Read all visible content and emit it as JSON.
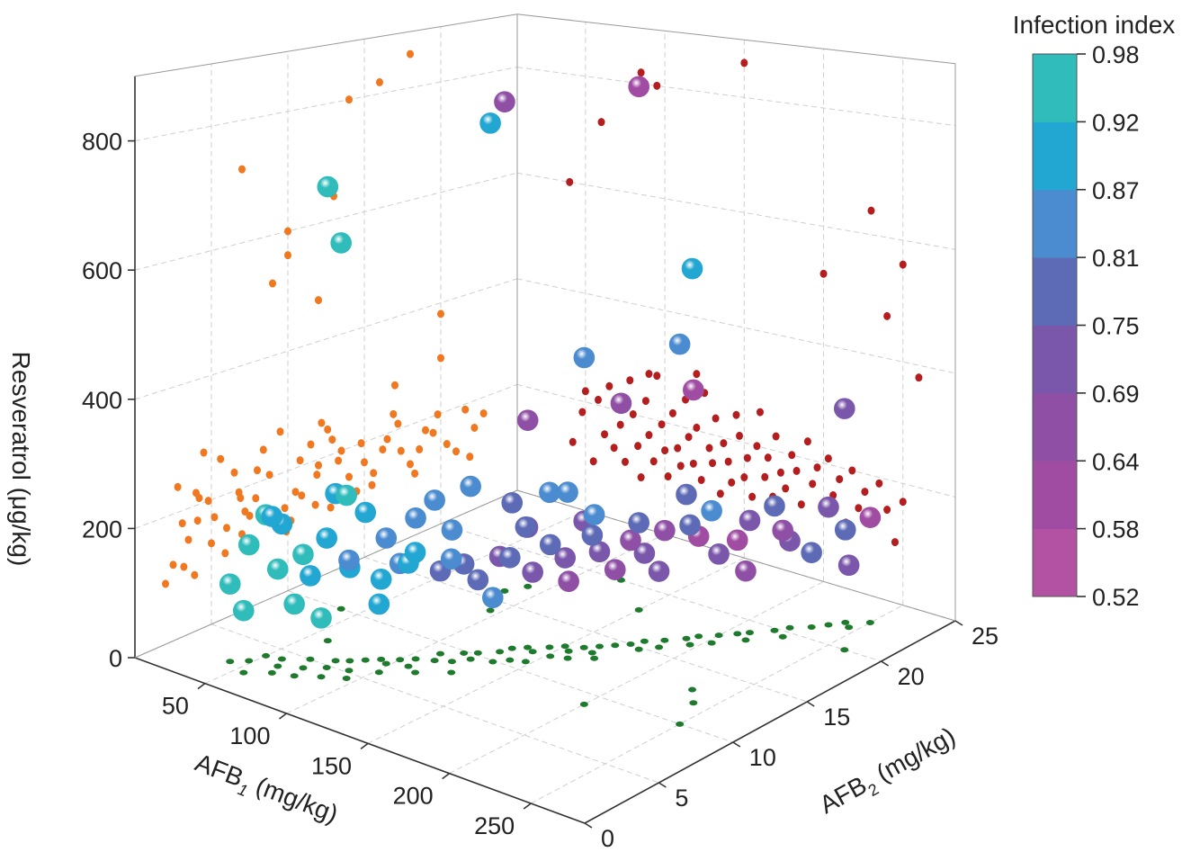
{
  "chart_data": {
    "type": "scatter3d",
    "title": "",
    "x_axis": {
      "label": "AFB",
      "sub": "1",
      "unit": " (mg/kg)",
      "range": [
        7,
        283
      ],
      "ticks": [
        "50",
        "100",
        "150",
        "200",
        "250"
      ],
      "tick_values": [
        50,
        100,
        150,
        200,
        250
      ]
    },
    "y_axis": {
      "label": "AFB",
      "sub": "2",
      "unit": " (mg/kg)",
      "range": [
        0,
        25
      ],
      "ticks": [
        "0",
        "5",
        "10",
        "15",
        "20",
        "25"
      ],
      "tick_values": [
        0,
        5,
        10,
        15,
        20,
        25
      ]
    },
    "z_axis": {
      "label": "Resveratrol (μg/kg)",
      "range": [
        0,
        900
      ],
      "ticks": [
        "0",
        "200",
        "400",
        "600",
        "800"
      ],
      "tick_values": [
        0,
        200,
        400,
        600,
        800
      ]
    },
    "colorbar": {
      "title": "Infection index",
      "ticks": [
        "0.98",
        "0.92",
        "0.87",
        "0.81",
        "0.75",
        "0.69",
        "0.64",
        "0.58",
        "0.52"
      ],
      "bounds": [
        0.52,
        0.58,
        0.64,
        0.69,
        0.75,
        0.81,
        0.87,
        0.92,
        0.98
      ],
      "colors": [
        "#b352a2",
        "#a14ca3",
        "#8f4fa5",
        "#7a57aa",
        "#5d6ab6",
        "#4b8bd0",
        "#22a6d2",
        "#2fbcbb"
      ]
    },
    "projection_colors": {
      "afb2_resveratrol_wall": "#f07820",
      "afb1_resveratrol_wall": "#b51e1e",
      "floor": "#1e7a2c"
    },
    "grid": true,
    "points_columns": [
      "AFB1",
      "AFB2",
      "Resveratrol",
      "InfectionIndex"
    ],
    "points": [
      [
        42,
        2.5,
        120,
        0.95
      ],
      [
        48,
        3.1,
        180,
        0.93
      ],
      [
        55,
        2.0,
        95,
        0.96
      ],
      [
        58,
        4.2,
        210,
        0.91
      ],
      [
        62,
        3.5,
        150,
        0.94
      ],
      [
        65,
        2.8,
        240,
        0.92
      ],
      [
        68,
        5.0,
        130,
        0.9
      ],
      [
        72,
        4.1,
        175,
        0.93
      ],
      [
        75,
        3.2,
        110,
        0.95
      ],
      [
        78,
        5.6,
        260,
        0.89
      ],
      [
        80,
        4.8,
        200,
        0.91
      ],
      [
        83,
        6.0,
        145,
        0.88
      ],
      [
        85,
        3.9,
        90,
        0.94
      ],
      [
        88,
        6.5,
        230,
        0.9
      ],
      [
        90,
        5.2,
        170,
        0.86
      ],
      [
        93,
        7.0,
        125,
        0.92
      ],
      [
        95,
        4.5,
        280,
        0.93
      ],
      [
        98,
        6.8,
        195,
        0.87
      ],
      [
        100,
        7.5,
        150,
        0.85
      ],
      [
        102,
        5.9,
        105,
        0.91
      ],
      [
        105,
        8.0,
        220,
        0.84
      ],
      [
        108,
        7.2,
        160,
        0.88
      ],
      [
        110,
        9.1,
        130,
        0.8
      ],
      [
        113,
        8.4,
        250,
        0.86
      ],
      [
        115,
        6.9,
        185,
        0.9
      ],
      [
        118,
        9.8,
        140,
        0.78
      ],
      [
        120,
        8.8,
        205,
        0.83
      ],
      [
        123,
        10.2,
        115,
        0.76
      ],
      [
        125,
        9.5,
        270,
        0.87
      ],
      [
        128,
        7.9,
        175,
        0.82
      ],
      [
        130,
        10.9,
        150,
        0.74
      ],
      [
        132,
        11.5,
        230,
        0.8
      ],
      [
        135,
        9.9,
        100,
        0.85
      ],
      [
        137,
        12.0,
        190,
        0.72
      ],
      [
        140,
        10.5,
        160,
        0.79
      ],
      [
        142,
        11.8,
        125,
        0.7
      ],
      [
        145,
        12.6,
        245,
        0.84
      ],
      [
        147,
        10.8,
        210,
        0.77
      ],
      [
        150,
        13.1,
        140,
        0.73
      ],
      [
        152,
        11.9,
        175,
        0.81
      ],
      [
        155,
        12.8,
        110,
        0.68
      ],
      [
        158,
        13.5,
        200,
        0.75
      ],
      [
        160,
        12.2,
        260,
        0.86
      ],
      [
        163,
        14.0,
        150,
        0.71
      ],
      [
        165,
        13.3,
        185,
        0.78
      ],
      [
        168,
        14.5,
        120,
        0.66
      ],
      [
        170,
        12.9,
        225,
        0.83
      ],
      [
        173,
        15.0,
        165,
        0.69
      ],
      [
        176,
        15.6,
        140,
        0.74
      ],
      [
        180,
        14.8,
        200,
        0.8
      ],
      [
        183,
        16.2,
        175,
        0.67
      ],
      [
        186,
        15.5,
        120,
        0.72
      ],
      [
        190,
        16.9,
        230,
        0.76
      ],
      [
        193,
        17.4,
        160,
        0.64
      ],
      [
        196,
        16.5,
        190,
        0.78
      ],
      [
        200,
        18.0,
        130,
        0.7
      ],
      [
        203,
        17.2,
        210,
        0.82
      ],
      [
        206,
        18.6,
        150,
        0.62
      ],
      [
        210,
        19.0,
        180,
        0.75
      ],
      [
        214,
        18.3,
        110,
        0.68
      ],
      [
        218,
        19.8,
        200,
        0.79
      ],
      [
        222,
        20.4,
        140,
        0.73
      ],
      [
        226,
        19.5,
        170,
        0.65
      ],
      [
        230,
        21.0,
        120,
        0.81
      ],
      [
        235,
        21.6,
        190,
        0.7
      ],
      [
        240,
        22.2,
        150,
        0.77
      ],
      [
        245,
        21.9,
        100,
        0.72
      ],
      [
        250,
        22.8,
        170,
        0.63
      ],
      [
        60,
        7,
        720,
        0.95
      ],
      [
        95,
        14,
        800,
        0.92
      ],
      [
        85,
        16,
        820,
        0.66
      ],
      [
        150,
        18,
        860,
        0.64
      ],
      [
        230,
        13,
        640,
        0.89
      ],
      [
        200,
        9,
        520,
        0.85
      ],
      [
        250,
        10,
        560,
        0.84
      ],
      [
        240,
        12,
        470,
        0.6
      ],
      [
        260,
        20,
        380,
        0.7
      ],
      [
        120,
        20,
        300,
        0.65
      ],
      [
        90,
        17,
        280,
        0.67
      ],
      [
        40,
        10,
        600,
        0.97
      ],
      [
        50,
        4,
        220,
        0.98
      ]
    ]
  }
}
